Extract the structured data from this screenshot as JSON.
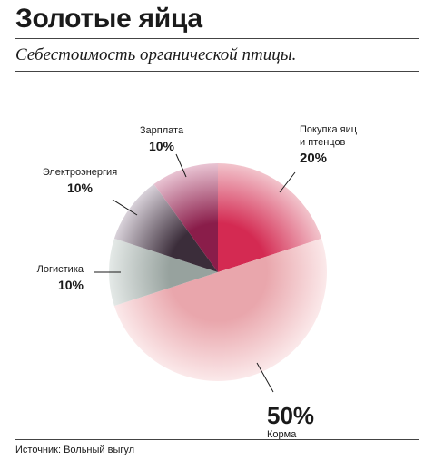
{
  "header": {
    "title": "Золотые яйца",
    "subtitle": "Себестоимость органической птицы."
  },
  "footer": {
    "source": "Источник: Вольный выгул"
  },
  "chart_data": {
    "type": "pie",
    "title": "Золотые яйца",
    "subtitle": "Себестоимость органической птицы.",
    "slices": [
      {
        "name": "Покупка яиц и птенцов",
        "label_lines": [
          "Покупка яиц",
          "и птенцов"
        ],
        "value": 20,
        "pct_label": "20%",
        "color": "#d42a52",
        "edge": "#f2c4cc"
      },
      {
        "name": "Корма",
        "label_lines": [
          "Корма"
        ],
        "value": 50,
        "pct_label": "50%",
        "color": "#e9a6ac",
        "edge": "#fbe9ea"
      },
      {
        "name": "Логистика",
        "label_lines": [
          "Логистика"
        ],
        "value": 10,
        "pct_label": "10%",
        "color": "#97a29e",
        "edge": "#e4e9e7"
      },
      {
        "name": "Электроэнергия",
        "label_lines": [
          "Электроэнергия"
        ],
        "value": 10,
        "pct_label": "10%",
        "color": "#3b2d3a",
        "edge": "#d9d2da"
      },
      {
        "name": "Зарплата",
        "label_lines": [
          "Зарплата"
        ],
        "value": 10,
        "pct_label": "10%",
        "color": "#8a1d4a",
        "edge": "#e9c4d3"
      }
    ]
  }
}
